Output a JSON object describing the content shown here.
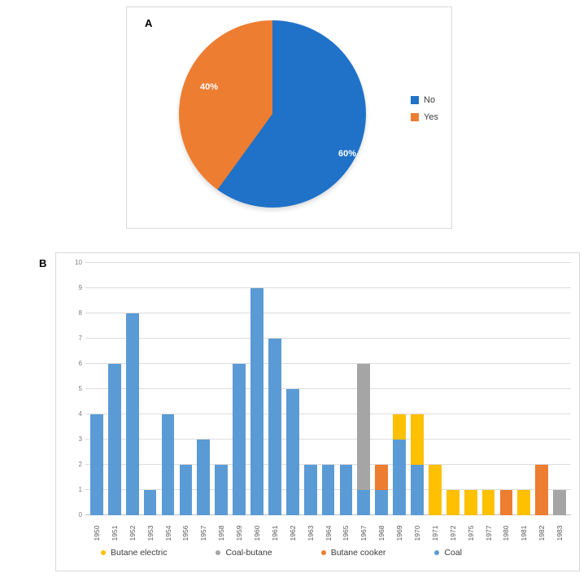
{
  "panel_a": {
    "label": "A"
  },
  "panel_b": {
    "label": "B"
  },
  "chart_data": [
    {
      "type": "pie",
      "title": "",
      "labels": [
        "No",
        "Yes"
      ],
      "values": [
        60,
        40
      ],
      "data_labels": [
        "60%",
        "40%"
      ],
      "colors": [
        "#1f72c8",
        "#ed7d31"
      ],
      "legend_position": "right",
      "start_angle_deg": 0
    },
    {
      "type": "bar",
      "stacked": true,
      "title": "",
      "xlabel": "",
      "ylabel": "",
      "ylim": [
        0,
        10
      ],
      "yticks": [
        0,
        1,
        2,
        3,
        4,
        5,
        6,
        7,
        8,
        9,
        10
      ],
      "grid": true,
      "legend_position": "bottom",
      "categories": [
        "1950",
        "1951",
        "1952",
        "1953",
        "1954",
        "1956",
        "1957",
        "1958",
        "1959",
        "1960",
        "1961",
        "1962",
        "1963",
        "1964",
        "1965",
        "1967",
        "1968",
        "1969",
        "1970",
        "1971",
        "1972",
        "1975",
        "1977",
        "1980",
        "1981",
        "1982",
        "1983"
      ],
      "series": [
        {
          "name": "Coal",
          "color": "#5b9bd5",
          "values": [
            4,
            6,
            8,
            1,
            4,
            2,
            3,
            2,
            6,
            9,
            7,
            5,
            2,
            2,
            2,
            1,
            1,
            3,
            2,
            0,
            0,
            0,
            0,
            0,
            0,
            0,
            0
          ]
        },
        {
          "name": "Coal-butane",
          "color": "#a5a5a5",
          "values": [
            0,
            0,
            0,
            0,
            0,
            0,
            0,
            0,
            0,
            0,
            0,
            0,
            0,
            0,
            0,
            5,
            0,
            0,
            0,
            0,
            0,
            0,
            0,
            0,
            0,
            0,
            1
          ]
        },
        {
          "name": "Butane cooker",
          "color": "#ed7d31",
          "values": [
            0,
            0,
            0,
            0,
            0,
            0,
            0,
            0,
            0,
            0,
            0,
            0,
            0,
            0,
            0,
            0,
            1,
            0,
            0,
            0,
            0,
            0,
            0,
            1,
            0,
            2,
            0
          ]
        },
        {
          "name": "Butane electric",
          "color": "#ffc000",
          "values": [
            0,
            0,
            0,
            0,
            0,
            0,
            0,
            0,
            0,
            0,
            0,
            0,
            0,
            0,
            0,
            0,
            0,
            1,
            2,
            2,
            1,
            1,
            1,
            0,
            1,
            0,
            0
          ]
        }
      ],
      "legend": [
        {
          "label": "Butane electric",
          "color": "#ffc000"
        },
        {
          "label": "Coal-butane",
          "color": "#a5a5a5"
        },
        {
          "label": "Butane cooker",
          "color": "#ed7d31"
        },
        {
          "label": "Coal",
          "color": "#5b9bd5"
        }
      ]
    }
  ]
}
